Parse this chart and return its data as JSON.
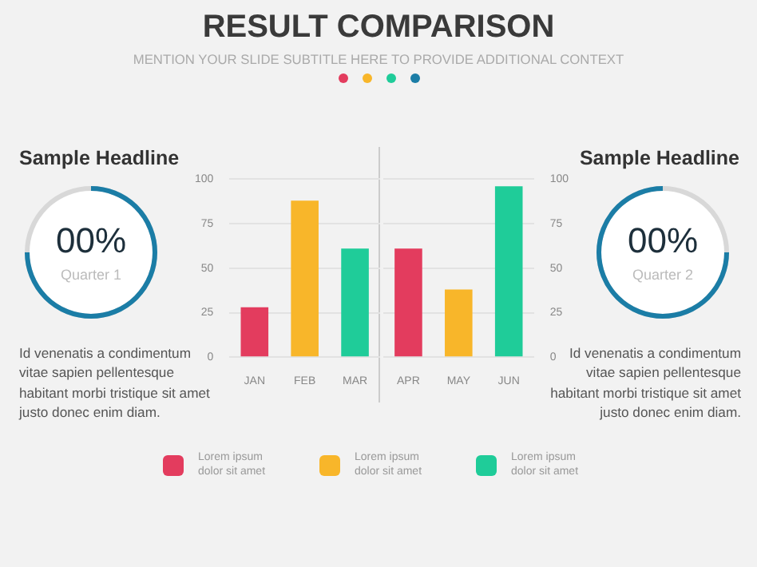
{
  "chart_data": [
    {
      "type": "other",
      "title": "RESULT COMPARISON",
      "subtitle": "MENTION YOUR SLIDE SUBTITLE HERE TO PROVIDE ADDITIONAL CONTEXT"
    },
    {
      "type": "other",
      "title": "Sample Headline",
      "annotations": [
        "00%",
        "Quarter 1",
        "Id venenatis a condimentum vitae sapien pellentesque habitant morbi tristique sit amet justo donec enim diam."
      ]
    },
    {
      "type": "bar",
      "categories": [
        "JAN",
        "FEB",
        "MAR"
      ],
      "ylim": [
        0,
        100
      ],
      "yticks": [
        0,
        25,
        50,
        75,
        100
      ],
      "grid": "y",
      "legend": "bottom",
      "series": [
        {
          "name": "Lorem ipsum dolor sit amet",
          "color": "#e33c5e",
          "values": [
            28,
            null,
            null
          ]
        },
        {
          "name": "Lorem ipsum dolor sit amet",
          "color": "#f8b62a",
          "values": [
            null,
            88,
            null
          ]
        },
        {
          "name": "Lorem ipsum dolor sit amet",
          "color": "#1fcc99",
          "values": [
            null,
            null,
            61
          ]
        }
      ]
    },
    {
      "type": "bar",
      "categories": [
        "APR",
        "MAY",
        "JUN"
      ],
      "ylim": [
        0,
        100
      ],
      "yticks": [
        0,
        25,
        50,
        75,
        100
      ],
      "grid": "y",
      "series": [
        {
          "color": "#e33c5e",
          "values": [
            61,
            null,
            null
          ]
        },
        {
          "color": "#f8b62a",
          "values": [
            null,
            38,
            null
          ]
        },
        {
          "color": "#1fcc99",
          "values": [
            null,
            null,
            96
          ]
        }
      ]
    },
    {
      "type": "other",
      "title": "Sample Headline",
      "annotations": [
        "00%",
        "Quarter 2",
        "Id venenatis a condimentum vitae sapien pellentesque habitant morbi tristique sit amet justo donec enim diam."
      ]
    }
  ]
}
